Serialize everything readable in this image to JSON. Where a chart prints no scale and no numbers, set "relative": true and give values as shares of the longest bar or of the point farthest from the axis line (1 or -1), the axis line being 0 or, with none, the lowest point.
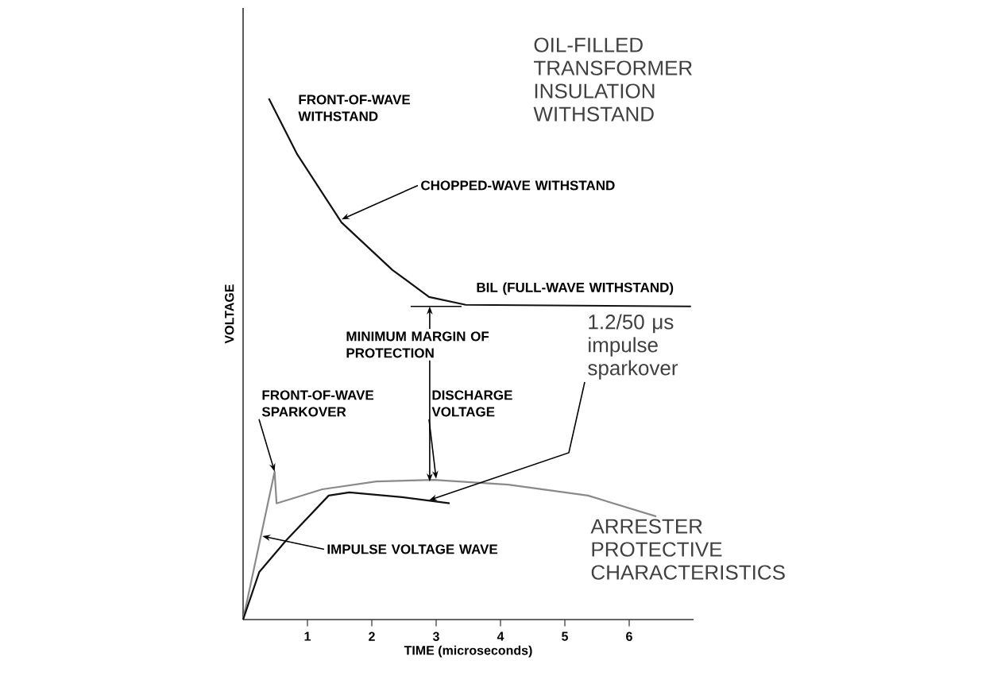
{
  "chart_data": {
    "type": "line",
    "relative": true,
    "xlabel": "TIME (microseconds)",
    "ylabel": "VOLTAGE",
    "xlim": [
      0,
      7
    ],
    "xticks": [
      1,
      2,
      3,
      4,
      5,
      6
    ],
    "tick_labels": "x",
    "series": [
      {
        "color": "#111111",
        "x": [
          0.4,
          0.84,
          1.53,
          2.32,
          2.89,
          3.46,
          6.96
        ],
        "values": [
          1.0,
          0.893,
          0.762,
          0.671,
          0.619,
          0.604,
          0.601
        ]
      },
      {
        "color": "#8a8a8a",
        "x": [
          0,
          0.49,
          0.52,
          1.23,
          2.07,
          2.96,
          4.12,
          5.36,
          6.42
        ],
        "values": [
          0,
          0.284,
          0.223,
          0.25,
          0.265,
          0.268,
          0.259,
          0.238,
          0.198
        ]
      },
      {
        "color": "#111111",
        "x": [
          0,
          0.25,
          0.67,
          1.33,
          1.65,
          2.47,
          3.21
        ],
        "values": [
          0,
          0.091,
          0.152,
          0.238,
          0.244,
          0.235,
          0.223
        ]
      }
    ],
    "annotations": [
      "FRONT-OF-WAVE WITHSTAND",
      {
        "text": "CHOPPED-WAVE WITHSTAND",
        "x": 1.53,
        "y": 0.768
      },
      "BIL (FULL-WAVE WITHSTAND)",
      "OIL-FILLED TRANSFORMER INSULATION WITHSTAND",
      {
        "text": "MINIMUM MARGIN OF PROTECTION",
        "x": 2.9,
        "y": 0.265
      },
      {
        "text": "1.2/50 μs impulse sparkover",
        "x": 2.89,
        "y": 0.229
      },
      {
        "text": "FRONT-OF-WAVE SPARKOVER",
        "x": 0.49,
        "y": 0.284
      },
      {
        "text": "DISCHARGE VOLTAGE",
        "x": 3.0,
        "y": 0.27
      },
      {
        "text": "IMPULSE VOLTAGE WAVE",
        "x": 0.3,
        "y": 0.16
      },
      "ARRESTER PROTECTIVE CHARACTERISTICS"
    ]
  }
}
